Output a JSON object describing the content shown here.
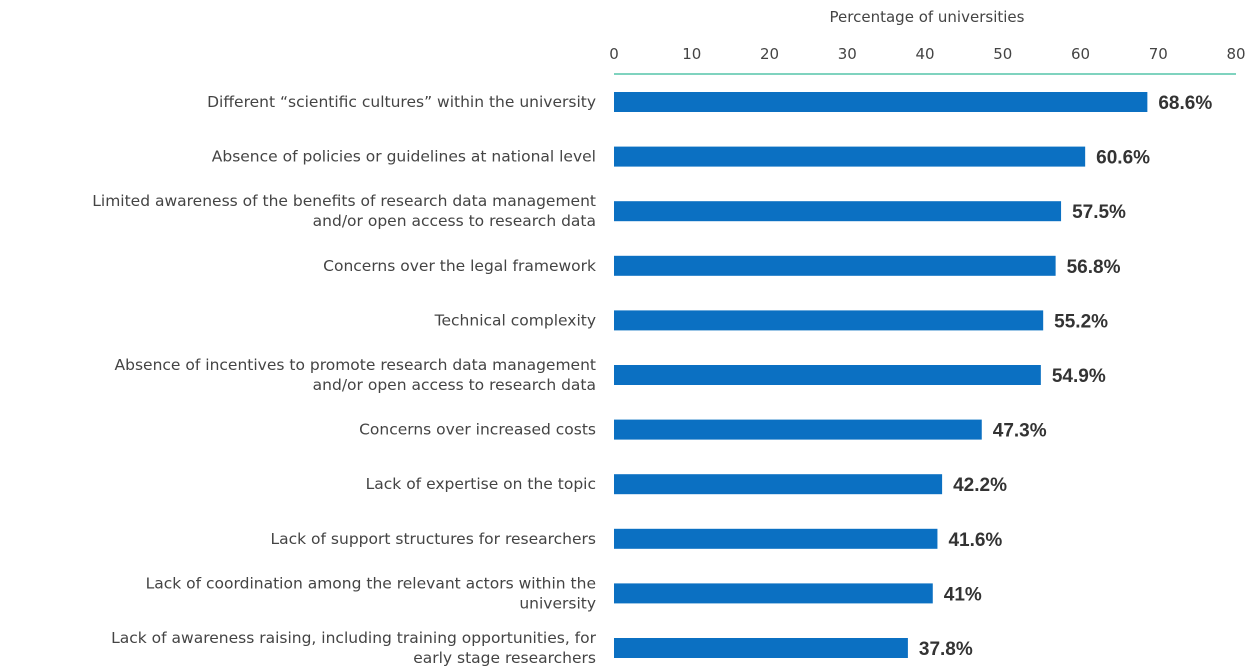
{
  "chart_data": {
    "type": "bar",
    "orientation": "horizontal",
    "xlabel": "Percentage of universities",
    "xlim": [
      0,
      80
    ],
    "x_ticks": [
      "0",
      "10",
      "20",
      "30",
      "40",
      "50",
      "60",
      "70",
      "80"
    ],
    "x_tick_values": [
      0,
      10,
      20,
      30,
      40,
      50,
      60,
      70,
      80
    ],
    "axis_position": "top",
    "categories": [
      [
        "Different “scientific cultures” within the university"
      ],
      [
        "Absence of policies or guidelines at national level"
      ],
      [
        "Limited awareness of the benefits of research data management",
        "and/or open access to research data"
      ],
      [
        "Concerns over the legal framework"
      ],
      [
        "Technical complexity"
      ],
      [
        "Absence of incentives to promote research data management",
        "and/or open access to research data"
      ],
      [
        "Concerns over increased costs"
      ],
      [
        "Lack of expertise on the topic"
      ],
      [
        "Lack of support structures for researchers"
      ],
      [
        "Lack of coordination among the relevant actors within the",
        "university"
      ],
      [
        "Lack of awareness raising, including training opportunities, for",
        "early stage researchers"
      ]
    ],
    "values": [
      68.6,
      60.6,
      57.5,
      56.8,
      55.2,
      54.9,
      47.3,
      42.2,
      41.6,
      41,
      37.8
    ],
    "value_labels": [
      "68.6%",
      "60.6%",
      "57.5%",
      "56.8%",
      "55.2%",
      "54.9%",
      "47.3%",
      "42.2%",
      "41.6%",
      "41%",
      "37.8%"
    ],
    "colors": {
      "bar": "#0b70c2",
      "axis_line": "#7fd3bf",
      "text": "#444444",
      "value_text": "#333333"
    },
    "grid": false,
    "legend": "none"
  }
}
